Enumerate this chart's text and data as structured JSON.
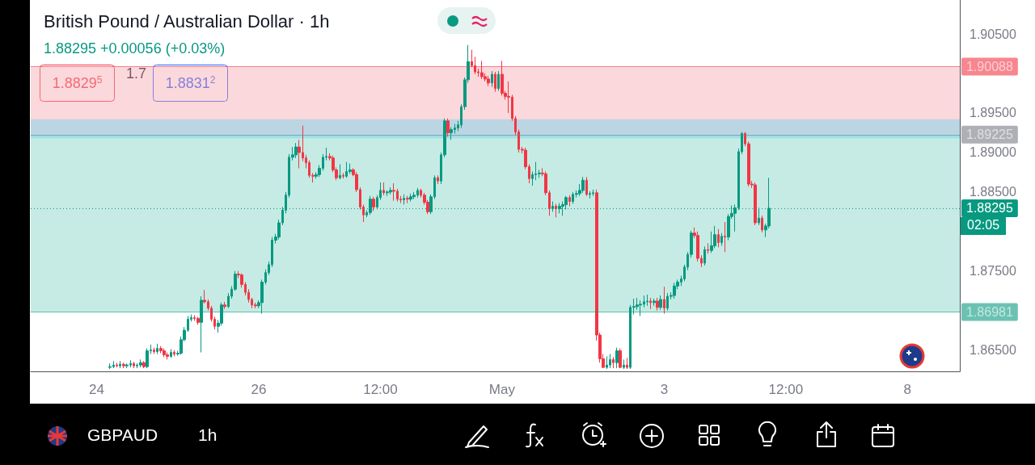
{
  "chart_data": {
    "type": "candlestick",
    "title": "British Pound / Australian Dollar · 1h",
    "subtitle": "1.88295 +0.00056 (+0.03%)",
    "categories": [
      null,
      null,
      null,
      null,
      null,
      null,
      null,
      null,
      null,
      null,
      null,
      null,
      null,
      null,
      null,
      null,
      null,
      null,
      null,
      "24",
      null,
      null,
      null,
      null,
      null,
      null,
      null,
      null,
      null,
      null,
      null,
      null,
      null,
      null,
      null,
      null,
      null,
      null,
      null,
      null,
      null,
      null,
      null,
      null,
      null,
      null,
      null,
      null,
      null,
      null,
      null,
      null,
      null,
      null,
      null,
      null,
      null,
      null,
      null,
      null,
      null,
      null,
      null,
      null,
      null,
      null,
      null,
      "26",
      null,
      null,
      null,
      null,
      null,
      null,
      null,
      null,
      null,
      null,
      null,
      null,
      null,
      null,
      null,
      null,
      null,
      null,
      null,
      null,
      null,
      null,
      null,
      null,
      null,
      null,
      null,
      null,
      null,
      null,
      null,
      null,
      null,
      null,
      null,
      "12:00",
      null,
      null,
      null,
      null,
      null,
      null,
      null,
      null,
      null,
      null,
      null,
      null,
      null,
      null,
      null,
      null,
      null,
      null,
      null,
      null,
      null,
      null,
      null,
      null,
      null,
      null,
      null,
      null,
      null,
      null,
      null,
      null,
      null,
      null,
      null,
      "May",
      null,
      null,
      null,
      null,
      null,
      null,
      null,
      null,
      null,
      null,
      null,
      null,
      null,
      null,
      null,
      null,
      null,
      null,
      null,
      null,
      null,
      null,
      null,
      null,
      null,
      null,
      null,
      null,
      null,
      null,
      null,
      null,
      null,
      null,
      null,
      null,
      null,
      null,
      null,
      null,
      null,
      null,
      null,
      null,
      null,
      null,
      null,
      "3",
      null,
      null,
      null,
      null,
      null,
      null,
      null,
      null,
      null,
      null,
      null,
      null,
      null,
      null,
      null,
      null,
      null,
      null,
      null,
      null,
      null,
      null,
      null,
      null,
      null,
      null,
      null,
      null,
      null,
      null,
      null,
      null,
      null,
      null,
      null,
      "12:00",
      null,
      null,
      null,
      null,
      null,
      null,
      null,
      null,
      null,
      null,
      null,
      null,
      null,
      null,
      null,
      null,
      null,
      null,
      null,
      null,
      null,
      null,
      null,
      null,
      null,
      null,
      null,
      null,
      null,
      null,
      null,
      null,
      null,
      null,
      null,
      "8",
      null,
      null,
      null,
      null,
      null,
      null,
      null,
      null,
      null,
      null,
      null,
      null,
      null,
      null,
      null
    ],
    "ohlc": [
      null,
      null,
      null,
      null,
      null,
      null,
      null,
      null,
      null,
      null,
      null,
      null,
      null,
      null,
      null,
      null,
      null,
      null,
      null,
      null,
      null,
      null,
      null,
      [
        1.8628,
        1.8633,
        1.8626,
        1.8629
      ],
      [
        1.8629,
        1.8636,
        1.8627,
        1.8631
      ],
      [
        1.8631,
        1.8634,
        1.8628,
        1.863
      ],
      [
        1.863,
        1.8636,
        1.8627,
        1.8632
      ],
      [
        1.8632,
        1.8634,
        1.8627,
        1.863
      ],
      [
        1.863,
        1.8633,
        1.8627,
        1.8631
      ],
      [
        1.8631,
        1.8637,
        1.8628,
        1.8633
      ],
      [
        1.8633,
        1.8635,
        1.8627,
        1.863
      ],
      [
        1.863,
        1.8633,
        1.8627,
        1.8631
      ],
      [
        1.8631,
        1.8638,
        1.8628,
        1.8634
      ],
      [
        1.8634,
        1.8636,
        1.8627,
        1.8629
      ],
      [
        1.8629,
        1.8652,
        1.8627,
        1.8649
      ],
      [
        1.8649,
        1.8657,
        1.8645,
        1.865
      ],
      [
        1.865,
        1.8653,
        1.8645,
        1.8648
      ],
      [
        1.8648,
        1.8658,
        1.8645,
        1.8652
      ],
      [
        1.8652,
        1.8655,
        1.8646,
        1.8649
      ],
      [
        1.8649,
        1.8652,
        1.8641,
        1.8644
      ],
      [
        1.8644,
        1.8647,
        1.8638,
        1.8642
      ],
      [
        1.8642,
        1.8651,
        1.864,
        1.8647
      ],
      [
        1.8647,
        1.865,
        1.8642,
        1.8645
      ],
      [
        1.8645,
        1.8649,
        1.8643,
        1.8646
      ],
      [
        1.8646,
        1.8667,
        1.8644,
        1.8663
      ],
      [
        1.8663,
        1.8679,
        1.8661,
        1.8675
      ],
      [
        1.8675,
        1.8693,
        1.8673,
        1.8689
      ],
      [
        1.8689,
        1.8695,
        1.8686,
        1.8691
      ],
      [
        1.8691,
        1.8694,
        1.8687,
        1.869
      ],
      [
        1.869,
        1.8692,
        1.8682,
        1.8685
      ],
      [
        1.8685,
        1.8718,
        1.8647,
        1.8713
      ],
      [
        1.8713,
        1.8726,
        1.8709,
        1.8711
      ],
      [
        1.8711,
        1.8714,
        1.87,
        1.8703
      ],
      [
        1.8703,
        1.8706,
        1.8686,
        1.8689
      ],
      [
        1.8689,
        1.8692,
        1.8676,
        1.868
      ],
      [
        1.868,
        1.8688,
        1.8672,
        1.8684
      ],
      [
        1.8684,
        1.871,
        1.8681,
        1.8707
      ],
      [
        1.8707,
        1.8711,
        1.8702,
        1.8705
      ],
      [
        1.8705,
        1.8722,
        1.8703,
        1.8718
      ],
      [
        1.8718,
        1.8731,
        1.8715,
        1.8727
      ],
      [
        1.8727,
        1.875,
        1.8725,
        1.8746
      ],
      [
        1.8746,
        1.875,
        1.8741,
        1.8745
      ],
      [
        1.8745,
        1.8747,
        1.8729,
        1.8733
      ],
      [
        1.8733,
        1.8736,
        1.8719,
        1.8723
      ],
      [
        1.8723,
        1.8727,
        1.871,
        1.8714
      ],
      [
        1.8714,
        1.8716,
        1.8703,
        1.8707
      ],
      [
        1.8707,
        1.871,
        1.8703,
        1.8706
      ],
      [
        1.8706,
        1.8713,
        1.8703,
        1.871
      ],
      [
        1.871,
        1.8739,
        1.8696,
        1.8736
      ],
      [
        1.8736,
        1.8752,
        1.8733,
        1.8748
      ],
      [
        1.8748,
        1.8762,
        1.8745,
        1.8758
      ],
      [
        1.8758,
        1.8793,
        1.8755,
        1.8789
      ],
      [
        1.8789,
        1.8797,
        1.8785,
        1.8793
      ],
      [
        1.8793,
        1.8815,
        1.879,
        1.8811
      ],
      [
        1.8811,
        1.8831,
        1.8808,
        1.8827
      ],
      [
        1.8827,
        1.885,
        1.8823,
        1.8846
      ],
      [
        1.8846,
        1.8898,
        1.8843,
        1.8894
      ],
      [
        1.8894,
        1.8907,
        1.889,
        1.8897
      ],
      [
        1.8897,
        1.8912,
        1.8893,
        1.8907
      ],
      [
        1.8907,
        1.8916,
        1.888,
        1.89
      ],
      [
        1.89,
        1.8934,
        1.8889,
        1.8893
      ],
      [
        1.8893,
        1.8897,
        1.888,
        1.8887
      ],
      [
        1.8887,
        1.889,
        1.8868,
        1.8871
      ],
      [
        1.8871,
        1.8874,
        1.8862,
        1.887
      ],
      [
        1.887,
        1.8875,
        1.8867,
        1.8872
      ],
      [
        1.8872,
        1.8884,
        1.8869,
        1.888
      ],
      [
        1.888,
        1.8898,
        1.8877,
        1.8894
      ],
      [
        1.8894,
        1.8906,
        1.889,
        1.8895
      ],
      [
        1.8895,
        1.8899,
        1.889,
        1.8893
      ],
      [
        1.8893,
        1.8896,
        1.8875,
        1.8878
      ],
      [
        1.8878,
        1.8881,
        1.8865,
        1.8868
      ],
      [
        1.8868,
        1.8885,
        1.8866,
        1.8871
      ],
      [
        1.8871,
        1.8874,
        1.8867,
        1.887
      ],
      [
        1.887,
        1.8888,
        1.8868,
        1.8876
      ],
      [
        1.8876,
        1.8886,
        1.8873,
        1.8878
      ],
      [
        1.8878,
        1.888,
        1.887,
        1.8872
      ],
      [
        1.8872,
        1.8875,
        1.885,
        1.8853
      ],
      [
        1.8853,
        1.8856,
        1.8828,
        1.8831
      ],
      [
        1.8831,
        1.8834,
        1.8812,
        1.8821
      ],
      [
        1.8821,
        1.8827,
        1.8818,
        1.8824
      ],
      [
        1.8824,
        1.8845,
        1.8821,
        1.8841
      ],
      [
        1.8841,
        1.8844,
        1.8826,
        1.8831
      ],
      [
        1.8831,
        1.8846,
        1.8828,
        1.8843
      ],
      [
        1.8843,
        1.8862,
        1.884,
        1.8852
      ],
      [
        1.8852,
        1.8862,
        1.8846,
        1.8849
      ],
      [
        1.8849,
        1.8852,
        1.8845,
        1.885
      ],
      [
        1.885,
        1.8856,
        1.8847,
        1.8852
      ],
      [
        1.8852,
        1.8861,
        1.8839,
        1.8851
      ],
      [
        1.8851,
        1.8854,
        1.8838,
        1.8841
      ],
      [
        1.8841,
        1.8845,
        1.8836,
        1.884
      ],
      [
        1.884,
        1.8847,
        1.8834,
        1.8842
      ],
      [
        1.8842,
        1.8845,
        1.8836,
        1.8841
      ],
      [
        1.8841,
        1.8848,
        1.8838,
        1.8844
      ],
      [
        1.8844,
        1.885,
        1.8841,
        1.8846
      ],
      [
        1.8846,
        1.8855,
        1.8843,
        1.8852
      ],
      [
        1.8852,
        1.8854,
        1.8843,
        1.8846
      ],
      [
        1.8846,
        1.8849,
        1.8834,
        1.8837
      ],
      [
        1.8837,
        1.884,
        1.8822,
        1.8825
      ],
      [
        1.8825,
        1.8847,
        1.8822,
        1.8844
      ],
      [
        1.8844,
        1.8871,
        1.8841,
        1.8868
      ],
      [
        1.8868,
        1.8871,
        1.886,
        1.8864
      ],
      [
        1.8864,
        1.89,
        1.886,
        1.8897
      ],
      [
        1.8897,
        1.8943,
        1.8894,
        1.894
      ],
      [
        1.894,
        1.8943,
        1.892,
        1.8925
      ],
      [
        1.8925,
        1.8932,
        1.8916,
        1.8929
      ],
      [
        1.8929,
        1.8936,
        1.8924,
        1.8931
      ],
      [
        1.8931,
        1.894,
        1.8927,
        1.8935
      ],
      [
        1.8935,
        1.8961,
        1.8931,
        1.8958
      ],
      [
        1.8958,
        1.8995,
        1.8954,
        1.8992
      ],
      [
        1.8992,
        1.9036,
        1.8988,
        1.9015
      ],
      [
        1.9015,
        1.903,
        1.9008,
        1.901
      ],
      [
        1.901,
        1.9021,
        1.8999,
        1.9002
      ],
      [
        1.9002,
        1.9006,
        1.8996,
        1.9001
      ],
      [
        1.9001,
        1.9016,
        1.8993,
        1.8996
      ],
      [
        1.8996,
        1.9,
        1.899,
        1.8993
      ],
      [
        1.8993,
        1.8997,
        1.8984,
        1.8988
      ],
      [
        1.8988,
        1.9003,
        1.8983,
        1.8999
      ],
      [
        1.8999,
        1.9002,
        1.8977,
        1.8981
      ],
      [
        1.8981,
        1.9003,
        1.8978,
        1.8999
      ],
      [
        1.8999,
        1.9016,
        1.8972,
        1.8975
      ],
      [
        1.8975,
        1.8978,
        1.8967,
        1.8971
      ],
      [
        1.8971,
        1.899,
        1.895,
        1.897
      ],
      [
        1.897,
        1.8973,
        1.894,
        1.8943
      ],
      [
        1.8943,
        1.8946,
        1.8922,
        1.8926
      ],
      [
        1.8926,
        1.8929,
        1.89,
        1.8904
      ],
      [
        1.8904,
        1.8907,
        1.8899,
        1.8903
      ],
      [
        1.8903,
        1.8906,
        1.8879,
        1.8882
      ],
      [
        1.8882,
        1.8885,
        1.8861,
        1.8867
      ],
      [
        1.8867,
        1.8876,
        1.8858,
        1.8872
      ],
      [
        1.8872,
        1.8888,
        1.8865,
        1.8873
      ],
      [
        1.8873,
        1.8878,
        1.8868,
        1.8874
      ],
      [
        1.8874,
        1.888,
        1.887,
        1.8873
      ],
      [
        1.8873,
        1.8876,
        1.8846,
        1.8849
      ],
      [
        1.8849,
        1.8852,
        1.882,
        1.8829
      ],
      [
        1.8829,
        1.8838,
        1.8825,
        1.8832
      ],
      [
        1.8832,
        1.8835,
        1.8818,
        1.8829
      ],
      [
        1.8829,
        1.8836,
        1.8823,
        1.8832
      ],
      [
        1.8832,
        1.8838,
        1.882,
        1.8834
      ],
      [
        1.8834,
        1.8845,
        1.8828,
        1.8843
      ],
      [
        1.8843,
        1.8846,
        1.8832,
        1.8838
      ],
      [
        1.8838,
        1.885,
        1.8835,
        1.8847
      ],
      [
        1.8847,
        1.8852,
        1.8843,
        1.8848
      ],
      [
        1.8848,
        1.886,
        1.8845,
        1.8852
      ],
      [
        1.8852,
        1.8869,
        1.8849,
        1.8865
      ],
      [
        1.8865,
        1.8869,
        1.8845,
        1.8847
      ],
      [
        1.8847,
        1.8851,
        1.8842,
        1.8848
      ],
      [
        1.8848,
        1.8853,
        1.8845,
        1.8849
      ],
      [
        1.8849,
        1.8853,
        1.8662,
        1.8669
      ],
      [
        1.8669,
        1.8672,
        1.8634,
        1.8639
      ],
      [
        1.8639,
        1.8645,
        1.8627,
        1.8628
      ],
      [
        1.8628,
        1.8642,
        1.8626,
        1.8631
      ],
      [
        1.8631,
        1.8645,
        1.8627,
        1.8638
      ],
      [
        1.8638,
        1.8641,
        1.8627,
        1.8634
      ],
      [
        1.8634,
        1.8653,
        1.8627,
        1.8649
      ],
      [
        1.8649,
        1.8652,
        1.8627,
        1.8628
      ],
      [
        1.8628,
        1.8638,
        1.8626,
        1.8631
      ],
      [
        1.8631,
        1.864,
        1.8626,
        1.8628
      ],
      [
        1.8628,
        1.8707,
        1.8626,
        1.8704
      ],
      [
        1.8704,
        1.8715,
        1.8695,
        1.8705
      ],
      [
        1.8705,
        1.8716,
        1.8701,
        1.8707
      ],
      [
        1.8707,
        1.8713,
        1.8693,
        1.8708
      ],
      [
        1.8708,
        1.8719,
        1.8704,
        1.8711
      ],
      [
        1.8711,
        1.872,
        1.8706,
        1.8712
      ],
      [
        1.8712,
        1.8716,
        1.8702,
        1.871
      ],
      [
        1.871,
        1.8715,
        1.8706,
        1.8712
      ],
      [
        1.8712,
        1.8716,
        1.87,
        1.8704
      ],
      [
        1.8704,
        1.8719,
        1.8701,
        1.8714
      ],
      [
        1.8714,
        1.873,
        1.8696,
        1.8703
      ],
      [
        1.8703,
        1.8722,
        1.87,
        1.8718
      ],
      [
        1.8718,
        1.8723,
        1.8714,
        1.8719
      ],
      [
        1.8719,
        1.8735,
        1.8715,
        1.8731
      ],
      [
        1.8731,
        1.8739,
        1.8727,
        1.8736
      ],
      [
        1.8736,
        1.8744,
        1.8731,
        1.874
      ],
      [
        1.874,
        1.8758,
        1.8737,
        1.8755
      ],
      [
        1.8755,
        1.8774,
        1.8751,
        1.8771
      ],
      [
        1.8771,
        1.8801,
        1.8767,
        1.8798
      ],
      [
        1.8798,
        1.8805,
        1.8792,
        1.8795
      ],
      [
        1.8795,
        1.88,
        1.8762,
        1.8766
      ],
      [
        1.8766,
        1.877,
        1.8755,
        1.876
      ],
      [
        1.876,
        1.8781,
        1.8757,
        1.8777
      ],
      [
        1.8777,
        1.8785,
        1.8772,
        1.8776
      ],
      [
        1.8776,
        1.88,
        1.8773,
        1.8782
      ],
      [
        1.8782,
        1.8807,
        1.8779,
        1.8796
      ],
      [
        1.8796,
        1.8803,
        1.878,
        1.8786
      ],
      [
        1.8786,
        1.8798,
        1.8782,
        1.8794
      ],
      [
        1.8794,
        1.8812,
        1.8774,
        1.8793
      ],
      [
        1.8793,
        1.8822,
        1.8789,
        1.8819
      ],
      [
        1.8819,
        1.8833,
        1.8816,
        1.8823
      ],
      [
        1.8823,
        1.8834,
        1.88,
        1.883
      ],
      [
        1.883,
        1.8905,
        1.8827,
        1.8901
      ],
      [
        1.8901,
        1.8926,
        1.8898,
        1.8924
      ],
      [
        1.8924,
        1.8926,
        1.8908,
        1.8911
      ],
      [
        1.8911,
        1.8914,
        1.8857,
        1.886
      ],
      [
        1.886,
        1.8864,
        1.8855,
        1.8859
      ],
      [
        1.8859,
        1.8862,
        1.8808,
        1.8811
      ],
      [
        1.8811,
        1.883,
        1.8808,
        1.8817
      ],
      [
        1.8817,
        1.882,
        1.8799,
        1.8802
      ],
      [
        1.8802,
        1.881,
        1.8793,
        1.8807
      ],
      [
        1.8807,
        1.8868,
        1.8804,
        1.88295
      ],
      null,
      null,
      null,
      null,
      null,
      null,
      null,
      null,
      null,
      null,
      null,
      null,
      null,
      null,
      null,
      null,
      null,
      null,
      null,
      null,
      null,
      null,
      null,
      null,
      null,
      null,
      null,
      null,
      null,
      null,
      null,
      null,
      null,
      null,
      null,
      null,
      null,
      null,
      null,
      null,
      null,
      null,
      null,
      null,
      null,
      null,
      null,
      null,
      null,
      null,
      null,
      null,
      null,
      null,
      null,
      null
    ],
    "ylim": [
      1.8623,
      1.9093
    ],
    "yticks": [
      {
        "value": 1.865,
        "label": "1.86500"
      },
      {
        "value": 1.875,
        "label": "1.87500"
      },
      {
        "value": 1.885,
        "label": "1.88500"
      },
      {
        "value": 1.89,
        "label": "1.89000"
      },
      {
        "value": 1.895,
        "label": "1.89500"
      },
      {
        "value": 1.905,
        "label": "1.90500"
      }
    ],
    "bands": [
      {
        "axis": "y",
        "from": 1.89225,
        "to": 1.90088,
        "color": "#f7a9b0"
      },
      {
        "axis": "y",
        "from": 1.86981,
        "to": 1.89225,
        "color": "#7fd3c3"
      },
      {
        "axis": "y",
        "from": 1.8918,
        "to": 1.8942,
        "color": "#6fd3ea"
      }
    ],
    "ref_lines": [
      {
        "axis": "y",
        "value": 1.88295,
        "label": "1.88295",
        "color": "#089981",
        "line_style": "dotted"
      },
      {
        "axis": "y",
        "value": 1.90088,
        "label": "1.90088",
        "color": "#f23645"
      },
      {
        "axis": "y",
        "value": 1.89225,
        "label": "1.89225",
        "color": "#787b86"
      },
      {
        "axis": "y",
        "value": 1.86981,
        "label": "1.86981",
        "color": "#089981"
      }
    ],
    "annotations": [
      "1.8829$^{5}$",
      "1.7",
      "1.8831$^{2}$",
      "02:05",
      "GBPAUD",
      "1h"
    ]
  }
}
